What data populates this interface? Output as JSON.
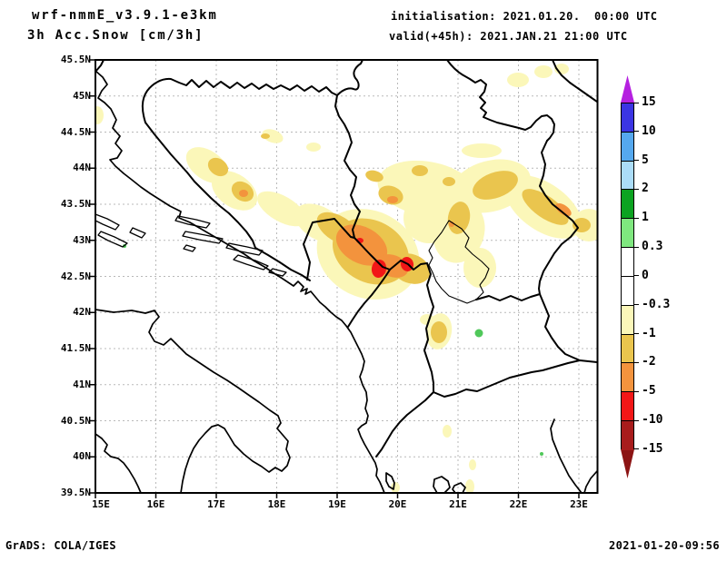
{
  "header": {
    "model_title": "wrf-nmmE_v3.9.1-e3km",
    "product_title": "3h Acc.Snow [cm/3h]",
    "init_line": "initialisation: 2021.01.20.  00:00 UTC",
    "valid_line": "valid(+45h): 2021.JAN.21 21:00 UTC"
  },
  "footer": {
    "credit": "GrADS: COLA/IGES",
    "timestamp": "2021-01-20-09:56"
  },
  "axes": {
    "x_ticks": [
      "15E",
      "16E",
      "17E",
      "18E",
      "19E",
      "20E",
      "21E",
      "22E",
      "23E"
    ],
    "y_ticks": [
      "45.5N",
      "45N",
      "44.5N",
      "44N",
      "43.5N",
      "43N",
      "42.5N",
      "42N",
      "41.5N",
      "41N",
      "40.5N",
      "40N",
      "39.5N"
    ]
  },
  "colorbar": {
    "tick_labels": [
      "15",
      "10",
      "5",
      "2",
      "1",
      "0.3",
      "0",
      "-0.3",
      "-1",
      "-2",
      "-5",
      "-10",
      "-15"
    ],
    "segment_colors": [
      "#3b35e3",
      "#55a8ee",
      "#abdcf8",
      "#0ca321",
      "#7fe77f",
      "#ffffff",
      "#ffffff",
      "#fbf7b9",
      "#eac54e",
      "#f3933d",
      "#f21717",
      "#a81c1c"
    ],
    "arrow_top_color": "#b520e0",
    "arrow_bottom_color": "#8c1414"
  },
  "palette_meaning": {
    "pale_yellow": "-0.3 to -1 cm/3h",
    "gold": "-1 to -2 cm/3h",
    "orange": "-2 to -5 cm/3h",
    "red": "-5 to -10 cm/3h",
    "green": "+0.3 to +1 cm/3h"
  },
  "chart_data": {
    "type": "filled_contour_map",
    "title": "3h Acc.Snow [cm/3h]",
    "model": "wrf-nmmE_v3.9.1-e3km",
    "initialisation": "2021.01.20. 00:00 UTC",
    "valid": "2021.JAN.21 21:00 UTC (+45h)",
    "region": "Western Balkans / Adriatic",
    "lon_range_deg_e": [
      15,
      23.3
    ],
    "lat_range_deg_n": [
      39.5,
      45.5
    ],
    "grid": {
      "lon_step_deg": 1,
      "lat_step_deg": 0.5,
      "gridlines": "dashed gray"
    },
    "contour_levels_cm_per_3h": [
      -15,
      -10,
      -5,
      -2,
      -1,
      -0.3,
      0,
      0.3,
      1,
      2,
      5,
      10,
      15
    ],
    "shaded_regions": [
      {
        "area": "NW/central Bosnia band (16.8-18.0E, 43.7-44.3N)",
        "band": "-0.3 to -2, small -2 to -5 core near 17.4E/43.7N"
      },
      {
        "area": "Montenegro / N Albania / SW Serbia (18.6-20.5E, 42.3-43.3N)",
        "band": "-2 to -5 broad, -5 to -10 cores near 19.7E/42.6N and 20.2E/42.7N"
      },
      {
        "area": "Central Serbia (19.7-22.0E, 43.3-44.3N)",
        "band": "-0.3 to -1 with -1 to -2 cores"
      },
      {
        "area": "Kosovo band (20.8-21.1E, 42.5-43.2N)",
        "band": "-1 to -2"
      },
      {
        "area": "E Serbia / Bulgaria border (21.8-23.3E, 42.9-43.8N)",
        "band": "-1 to -2 with small -2 to -5 core"
      },
      {
        "area": "W North Macedonia spot near 20.6E/41.7N",
        "band": "-1 to -2"
      },
      {
        "area": "Spot near 21.3E/41.7N",
        "band": "+0.3 to +1 (green)"
      }
    ]
  }
}
